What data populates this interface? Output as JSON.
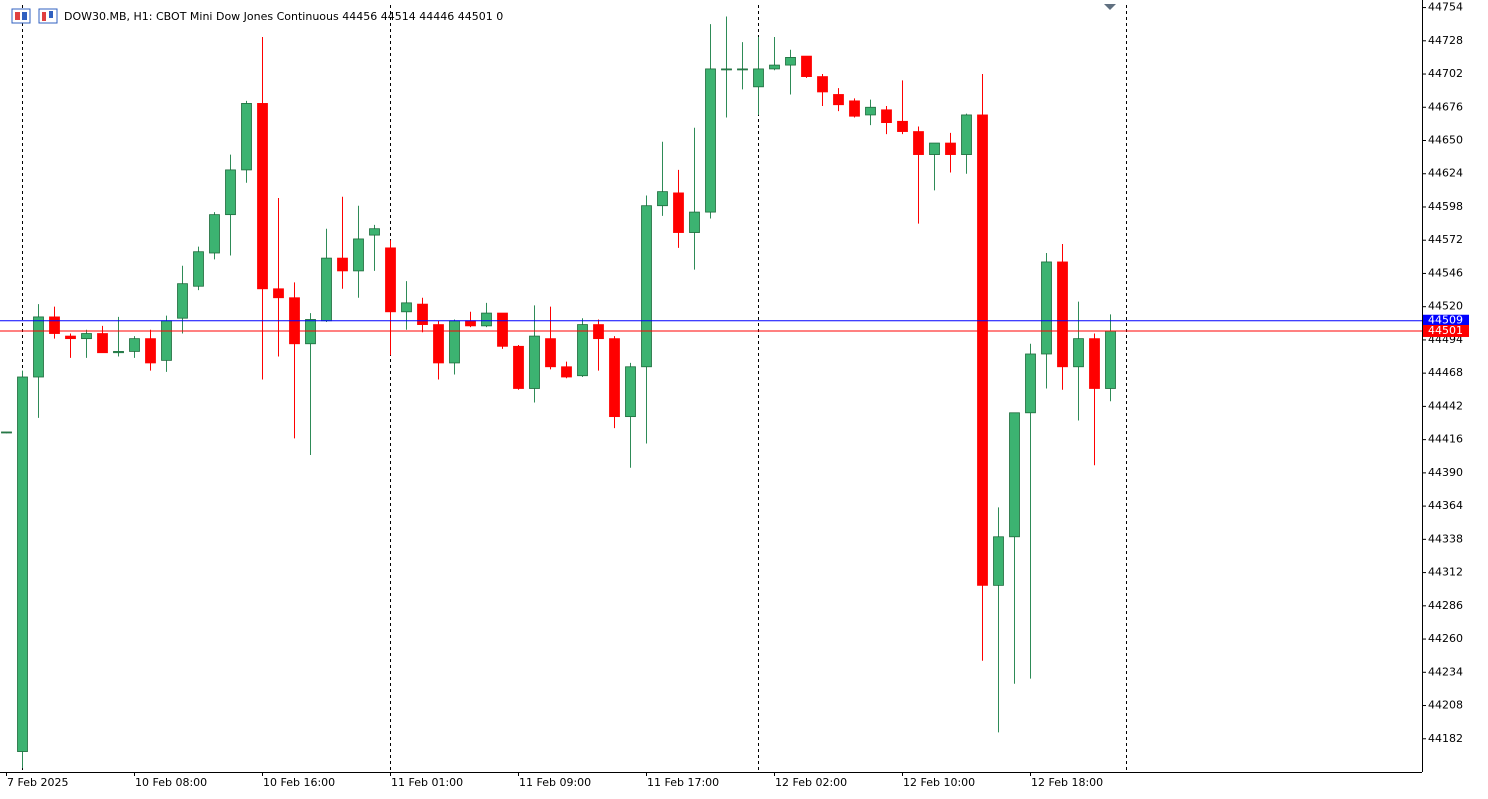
{
  "chart_data": {
    "type": "candlestick",
    "title": "DOW30.MB, H1:  CBOT Mini Dow Jones Continuous  44456 44514 44446 44501  0",
    "categories": [
      "7 Feb 2025",
      null,
      null,
      null,
      null,
      null,
      null,
      null,
      "10 Feb 08:00",
      null,
      null,
      null,
      null,
      null,
      null,
      null,
      "10 Feb 16:00",
      null,
      null,
      null,
      null,
      null,
      null,
      null,
      "11 Feb 01:00",
      null,
      null,
      null,
      null,
      null,
      null,
      null,
      "11 Feb 09:00",
      null,
      null,
      null,
      null,
      null,
      null,
      null,
      "11 Feb 17:00",
      null,
      null,
      null,
      null,
      null,
      null,
      null,
      "12 Feb 02:00",
      null,
      null,
      null,
      null,
      null,
      null,
      null,
      "12 Feb 10:00",
      null,
      null,
      null,
      null,
      null,
      null,
      null,
      "12 Feb 18:00",
      null,
      null,
      null,
      null,
      null
    ],
    "open": [
      44422,
      44172,
      44465,
      44512,
      44497,
      44495,
      44499,
      44484,
      44485,
      44495,
      44478,
      44511,
      44536,
      44562,
      44592,
      44627,
      44679,
      44534,
      44527,
      44491,
      44509,
      44558,
      44548,
      44576,
      44566,
      44516,
      44522,
      44506,
      44476,
      44509,
      44505,
      44515,
      44489,
      44456,
      44495,
      44473,
      44466,
      44506,
      44495,
      44434,
      44473,
      44599,
      44609,
      44578,
      44594,
      44706,
      44706,
      44692,
      44706,
      44709,
      44716,
      44700,
      44686,
      44681,
      44670,
      44674,
      44665,
      44657,
      44639,
      44648,
      44639,
      44670,
      44302,
      44340,
      44437,
      44483,
      44555,
      44473,
      44495,
      44456
    ],
    "high": [
      44422,
      44470,
      44522,
      44520,
      44499,
      44502,
      44505,
      44512,
      44497,
      44502,
      44513,
      44552,
      44567,
      44594,
      44639,
      44681,
      44731,
      44605,
      44539,
      44515,
      44581,
      44606,
      44599,
      44584,
      44572,
      44540,
      44527,
      44509,
      44510,
      44516,
      44523,
      44515,
      44490,
      44521,
      44520,
      44477,
      44511,
      44510,
      44497,
      44476,
      44607,
      44649,
      44627,
      44660,
      44741,
      44747,
      44727,
      44731,
      44731,
      44721,
      44716,
      44702,
      44691,
      44683,
      44682,
      44677,
      44697,
      44661,
      44648,
      44656,
      44671,
      44702,
      44363,
      44437,
      44491,
      44562,
      44569,
      44524,
      44499,
      44514
    ],
    "low": [
      44421,
      44159,
      44433,
      44495,
      44480,
      44480,
      44484,
      44481,
      44480,
      44470,
      44469,
      44499,
      44533,
      44557,
      44560,
      44617,
      44463,
      44481,
      44417,
      44404,
      44508,
      44534,
      44527,
      44548,
      44482,
      44502,
      44500,
      44463,
      44467,
      44504,
      44504,
      44487,
      44455,
      44445,
      44471,
      44464,
      44465,
      44470,
      44425,
      44394,
      44413,
      44591,
      44566,
      44549,
      44589,
      44668,
      44690,
      44670,
      44705,
      44686,
      44699,
      44677,
      44673,
      44668,
      44662,
      44655,
      44655,
      44585,
      44611,
      44625,
      44624,
      44243,
      44187,
      44225,
      44229,
      44456,
      44455,
      44431,
      44396,
      44446
    ],
    "close": [
      44422,
      44465,
      44512,
      44499,
      44495,
      44499,
      44484,
      44485,
      44495,
      44476,
      44509,
      44538,
      44563,
      44592,
      44627,
      44679,
      44534,
      44527,
      44491,
      44510,
      44558,
      44548,
      44573,
      44581,
      44516,
      44523,
      44506,
      44476,
      44509,
      44505,
      44515,
      44489,
      44456,
      44497,
      44473,
      44465,
      44506,
      44495,
      44434,
      44473,
      44599,
      44610,
      44578,
      44594,
      44706,
      44706,
      44706,
      44706,
      44709,
      44715,
      44700,
      44688,
      44678,
      44669,
      44676,
      44664,
      44657,
      44639,
      44648,
      44639,
      44670,
      44302,
      44340,
      44437,
      44483,
      44555,
      44473,
      44495,
      44456,
      44501
    ],
    "up_color": "#3cb371",
    "down_color": "#ff0000",
    "ylim": [
      44156,
      44756
    ],
    "yticks": [
      44182,
      44208,
      44234,
      44260,
      44286,
      44312,
      44338,
      44364,
      44390,
      44416,
      44442,
      44468,
      44494,
      44520,
      44546,
      44572,
      44598,
      44624,
      44650,
      44676,
      44702,
      44728,
      44754
    ],
    "price_lines": [
      {
        "value": 44509,
        "color": "#0000ff"
      },
      {
        "value": 44501,
        "color": "#ff0000"
      }
    ]
  }
}
